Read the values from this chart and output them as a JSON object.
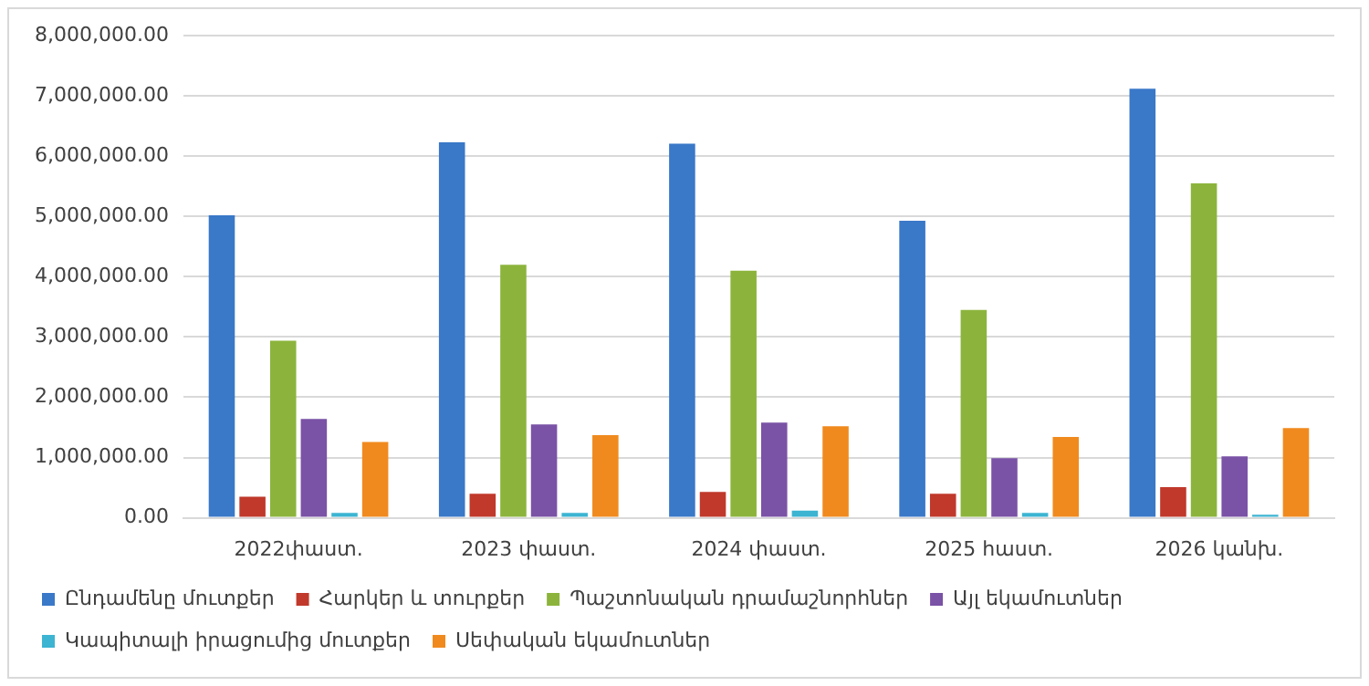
{
  "chart_data": {
    "type": "bar",
    "categories": [
      "2022փաստ.",
      "2023 փաստ.",
      "2024 փաստ.",
      "2025 հաստ.",
      "2026 կանխ."
    ],
    "series": [
      {
        "name": "Ընդամենը մուտքեր",
        "color": "#3a78c8",
        "values": [
          5020000,
          6230000,
          6210000,
          4930000,
          7120000
        ]
      },
      {
        "name": "Հարկեր և տուրքեր",
        "color": "#c0392b",
        "values": [
          350000,
          400000,
          430000,
          400000,
          510000
        ]
      },
      {
        "name": "Պաշտոնական դրամաշնորհներ",
        "color": "#8cb43c",
        "values": [
          2940000,
          4200000,
          4100000,
          3450000,
          5550000
        ]
      },
      {
        "name": "Այլ եկամուտներ",
        "color": "#7a52a6",
        "values": [
          1640000,
          1550000,
          1580000,
          990000,
          1020000
        ]
      },
      {
        "name": "Կապիտալի իրացումից մուտքեր",
        "color": "#3cb4d2",
        "values": [
          80000,
          80000,
          120000,
          80000,
          50000
        ]
      },
      {
        "name": "Սեփական եկամուտներ",
        "color": "#f08a1e",
        "values": [
          1260000,
          1370000,
          1520000,
          1340000,
          1490000
        ]
      }
    ],
    "ylim": [
      0,
      8000000
    ],
    "yticks": [
      {
        "value": 0,
        "label": "0.00"
      },
      {
        "value": 1000000,
        "label": "1,000,000.00"
      },
      {
        "value": 2000000,
        "label": "2,000,000.00"
      },
      {
        "value": 3000000,
        "label": "3,000,000.00"
      },
      {
        "value": 4000000,
        "label": "4,000,000.00"
      },
      {
        "value": 5000000,
        "label": "5,000,000.00"
      },
      {
        "value": 6000000,
        "label": "6,000,000.00"
      },
      {
        "value": 7000000,
        "label": "7,000,000.00"
      },
      {
        "value": 8000000,
        "label": "8,000,000.00"
      }
    ],
    "grid": "y",
    "legend": "bottom"
  }
}
